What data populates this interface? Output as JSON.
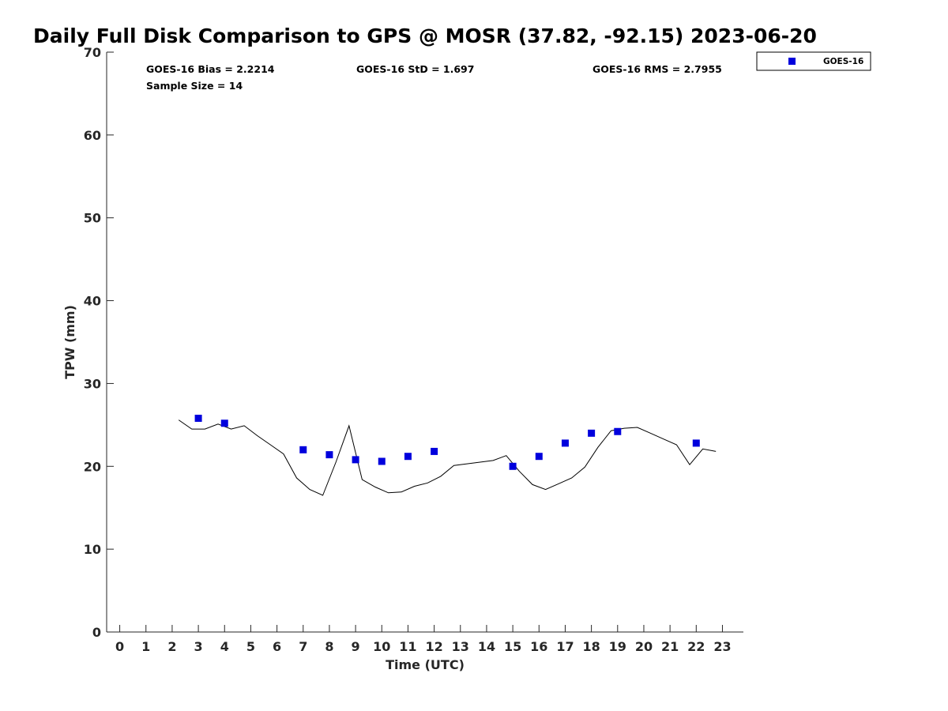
{
  "chart_data": {
    "type": "scatter",
    "title": "Daily Full Disk Comparison to GPS @ MOSR (37.82, -92.15) 2023-06-20",
    "xlabel": "Time (UTC)",
    "ylabel": "TPW (mm)",
    "xlim": [
      -0.5,
      23.8
    ],
    "ylim": [
      0,
      70
    ],
    "xticks": [
      0,
      1,
      2,
      3,
      4,
      5,
      6,
      7,
      8,
      9,
      10,
      11,
      12,
      13,
      14,
      15,
      16,
      17,
      18,
      19,
      20,
      21,
      22,
      23
    ],
    "yticks": [
      0,
      10,
      20,
      30,
      40,
      50,
      60,
      70
    ],
    "grid": false,
    "legend_position": "top-right",
    "stats": {
      "bias": "GOES-16 Bias = 2.2214",
      "std": "GOES-16 StD = 1.697",
      "rms": "GOES-16 RMS = 2.7955",
      "sample_size": "Sample Size = 14"
    },
    "series": [
      {
        "name": "GOES-16",
        "kind": "scatter",
        "marker": "square",
        "color": "#0000dd",
        "x": [
          3,
          4,
          7,
          8,
          9,
          10,
          11,
          12,
          15,
          16,
          17,
          18,
          19,
          22
        ],
        "y": [
          25.8,
          25.2,
          22.0,
          21.4,
          20.8,
          20.6,
          21.2,
          21.8,
          20.0,
          21.2,
          22.8,
          24.0,
          24.2,
          22.8
        ]
      },
      {
        "kind": "line",
        "color": "#000000",
        "x": [
          2.25,
          2.75,
          3.25,
          3.75,
          4.25,
          4.75,
          5.25,
          5.75,
          6.25,
          6.75,
          7.25,
          7.75,
          8.25,
          8.75,
          9.25,
          9.75,
          10.25,
          10.75,
          11.25,
          11.75,
          12.25,
          12.75,
          13.25,
          13.75,
          14.25,
          14.75,
          15.25,
          15.75,
          16.25,
          16.75,
          17.25,
          17.75,
          18.25,
          18.75,
          19.25,
          19.75,
          20.25,
          20.75,
          21.25,
          21.75,
          22.25,
          22.75
        ],
        "y": [
          25.6,
          24.5,
          24.5,
          25.1,
          24.5,
          24.9,
          23.7,
          22.6,
          21.5,
          18.6,
          17.2,
          16.5,
          20.5,
          24.9,
          18.4,
          17.5,
          16.8,
          16.9,
          17.6,
          18.0,
          18.8,
          20.1,
          20.3,
          20.5,
          20.7,
          21.3,
          19.4,
          17.8,
          17.2,
          17.9,
          18.6,
          19.9,
          22.3,
          24.3,
          24.6,
          24.7,
          24.0,
          23.3,
          22.6,
          20.2,
          22.1,
          21.8
        ]
      }
    ]
  }
}
